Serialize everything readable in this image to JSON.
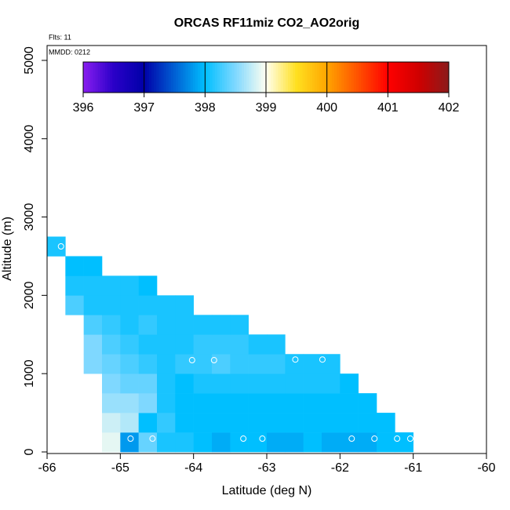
{
  "chart_data": {
    "type": "heatmap",
    "title": "ORCAS RF11miz CO2_AO2orig",
    "annotations": [
      "Flts: 11",
      "MMDD: 0212"
    ],
    "x_label": "Latitude (deg N)",
    "y_label": "Altitude (m)",
    "x": [
      -65.875,
      -65.625,
      -65.375,
      -65.125,
      -64.875,
      -64.625,
      -64.375,
      -64.125,
      -63.875,
      -63.625,
      -63.375,
      -63.125,
      -62.875,
      -62.625,
      -62.375,
      -62.125,
      -61.875,
      -61.625,
      -61.375,
      -61.125
    ],
    "y": [
      125,
      375,
      625,
      875,
      1125,
      1375,
      1625,
      1875,
      2125,
      2375,
      2625
    ],
    "z": [
      [
        null,
        null,
        null,
        398.9,
        397.8,
        398.4,
        398.1,
        398.1,
        398.0,
        397.9,
        398.0,
        398.0,
        397.9,
        397.9,
        398.0,
        397.9,
        397.9,
        397.9,
        398.0,
        398.0
      ],
      [
        null,
        null,
        null,
        398.8,
        398.7,
        398.0,
        398.2,
        398.0,
        398.0,
        398.0,
        398.0,
        398.0,
        398.0,
        398.0,
        398.0,
        398.0,
        398.0,
        398.0,
        398.0,
        null
      ],
      [
        null,
        null,
        null,
        398.6,
        398.6,
        398.5,
        398.1,
        398.0,
        398.0,
        398.0,
        398.0,
        398.0,
        398.0,
        398.0,
        398.0,
        398.0,
        398.0,
        398.0,
        null,
        null
      ],
      [
        null,
        null,
        null,
        398.5,
        398.4,
        398.4,
        398.1,
        398.0,
        398.1,
        398.1,
        398.1,
        398.1,
        398.1,
        398.1,
        398.1,
        398.1,
        398.0,
        null,
        null,
        null
      ],
      [
        null,
        null,
        398.5,
        398.4,
        398.3,
        398.2,
        398.1,
        398.2,
        398.2,
        398.3,
        398.2,
        398.2,
        398.2,
        398.1,
        398.1,
        398.1,
        null,
        null,
        null,
        null
      ],
      [
        null,
        null,
        398.5,
        398.3,
        398.2,
        398.1,
        398.1,
        398.1,
        398.2,
        398.2,
        398.2,
        398.1,
        398.1,
        null,
        null,
        null,
        null,
        null,
        null,
        null
      ],
      [
        null,
        null,
        398.3,
        398.2,
        398.1,
        398.2,
        398.1,
        398.1,
        398.1,
        398.1,
        398.1,
        null,
        null,
        null,
        null,
        null,
        null,
        null,
        null,
        null
      ],
      [
        null,
        398.3,
        398.1,
        398.1,
        398.1,
        398.1,
        398.1,
        398.1,
        null,
        null,
        null,
        null,
        null,
        null,
        null,
        null,
        null,
        null,
        null,
        null
      ],
      [
        null,
        398.1,
        398.1,
        398.1,
        398.1,
        398.0,
        null,
        null,
        null,
        null,
        null,
        null,
        null,
        null,
        null,
        null,
        null,
        null,
        null,
        null
      ],
      [
        null,
        398.0,
        398.0,
        null,
        null,
        null,
        null,
        null,
        null,
        null,
        null,
        null,
        null,
        null,
        null,
        null,
        null,
        null,
        null,
        null
      ],
      [
        398.1,
        null,
        null,
        null,
        null,
        null,
        null,
        null,
        null,
        null,
        null,
        null,
        null,
        null,
        null,
        null,
        null,
        null,
        null,
        null
      ]
    ],
    "points": {
      "color": "#ffffff",
      "x": [
        -65.81,
        -64.86,
        -64.56,
        -64.02,
        -63.72,
        -63.32,
        -63.06,
        -62.61,
        -62.24,
        -61.84,
        -61.53,
        -61.22,
        -61.04
      ],
      "y": [
        2625,
        170,
        170,
        1172,
        1172,
        170,
        170,
        1180,
        1180,
        170,
        170,
        170,
        170
      ]
    },
    "xlim": [
      -66,
      -60
    ],
    "xticks": [
      -66,
      -65,
      -64,
      -63,
      -62,
      -61,
      -60
    ],
    "ylim": [
      -20,
      5190
    ],
    "yticks": [
      0,
      1000,
      2000,
      3000,
      4000,
      5000
    ],
    "colorbar": {
      "lim": [
        396,
        402
      ],
      "ticks": [
        396,
        397,
        398,
        399,
        400,
        401,
        402
      ],
      "stops": [
        396,
        396.5,
        397,
        398,
        398.5,
        399,
        399.5,
        400,
        401,
        401.5,
        402
      ],
      "colors": [
        "#8a1ef0",
        "#2a00c8",
        "#0000a8",
        "#00bfff",
        "#7fd8ff",
        "#fffff0",
        "#ffe020",
        "#ffa500",
        "#ff0000",
        "#d00000",
        "#8b1a1a"
      ]
    }
  }
}
